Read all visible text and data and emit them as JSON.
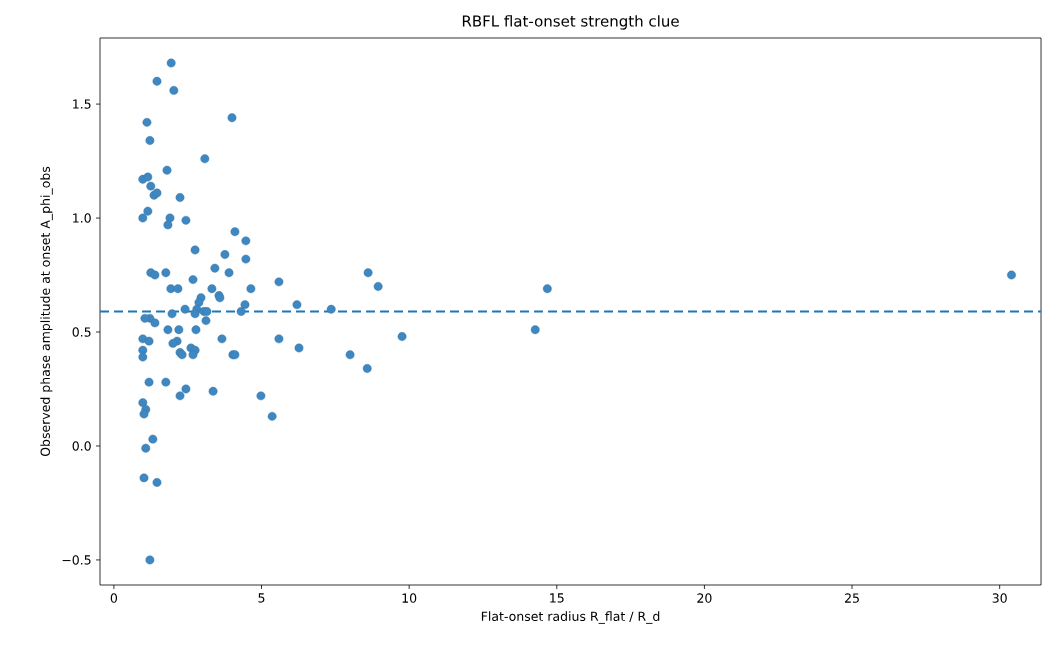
{
  "chart_data": {
    "type": "scatter",
    "title": "RBFL flat-onset strength clue",
    "xlabel": "Flat-onset radius R_flat / R_d",
    "ylabel": "Observed phase amplitude at onset A_phi_obs",
    "x": [
      1.94,
      1.46,
      2.03,
      1.12,
      4.0,
      1.22,
      3.08,
      1.8,
      0.98,
      1.15,
      1.25,
      1.36,
      1.46,
      2.24,
      1.15,
      0.98,
      1.9,
      1.83,
      2.44,
      4.1,
      4.47,
      2.75,
      3.76,
      4.47,
      3.42,
      3.9,
      1.76,
      1.25,
      1.39,
      8.61,
      30.4,
      2.68,
      5.59,
      8.95,
      1.93,
      2.17,
      3.32,
      4.64,
      14.68,
      3.56,
      3.59,
      2.95,
      2.88,
      6.2,
      4.44,
      7.36,
      2.81,
      2.41,
      4.31,
      2.75,
      3.05,
      3.15,
      1.97,
      1.22,
      1.05,
      1.39,
      3.12,
      14.27,
      2.2,
      1.83,
      2.78,
      9.76,
      5.59,
      0.98,
      3.66,
      1.19,
      2.14,
      2.0,
      6.27,
      2.61,
      0.98,
      2.75,
      2.24,
      2.31,
      2.68,
      4.03,
      4.1,
      8.0,
      0.98,
      8.58,
      1.19,
      1.76,
      2.44,
      3.36,
      2.24,
      4.98,
      0.98,
      1.08,
      1.02,
      5.36,
      1.32,
      1.08,
      1.02,
      1.46,
      1.22
    ],
    "values": [
      1.68,
      1.6,
      1.56,
      1.42,
      1.44,
      1.34,
      1.26,
      1.21,
      1.17,
      1.18,
      1.14,
      1.1,
      1.11,
      1.09,
      1.03,
      1.0,
      1.0,
      0.97,
      0.99,
      0.94,
      0.9,
      0.86,
      0.84,
      0.82,
      0.78,
      0.76,
      0.76,
      0.76,
      0.75,
      0.76,
      0.75,
      0.73,
      0.72,
      0.7,
      0.69,
      0.69,
      0.69,
      0.69,
      0.69,
      0.66,
      0.65,
      0.65,
      0.63,
      0.62,
      0.62,
      0.6,
      0.6,
      0.6,
      0.59,
      0.58,
      0.59,
      0.59,
      0.58,
      0.56,
      0.56,
      0.54,
      0.55,
      0.51,
      0.51,
      0.51,
      0.51,
      0.48,
      0.47,
      0.47,
      0.47,
      0.46,
      0.46,
      0.45,
      0.43,
      0.43,
      0.42,
      0.42,
      0.41,
      0.4,
      0.4,
      0.4,
      0.4,
      0.4,
      0.39,
      0.34,
      0.28,
      0.28,
      0.25,
      0.24,
      0.22,
      0.22,
      0.19,
      0.16,
      0.14,
      0.13,
      0.03,
      -0.01,
      -0.14,
      -0.16,
      -0.5
    ],
    "color": "#3f87c1",
    "marker": "circle",
    "xlim": [
      -0.47,
      31.4
    ],
    "ylim": [
      -0.61,
      1.79
    ],
    "xticks": [
      0,
      5,
      10,
      15,
      20,
      25,
      30
    ],
    "yticks": [
      {
        "value": -0.5,
        "label": "−0.5"
      },
      {
        "value": 0,
        "label": "0.0"
      },
      {
        "value": 0.5,
        "label": "0.5"
      },
      {
        "value": 1.0,
        "label": "1.0"
      },
      {
        "value": 1.5,
        "label": "1.5"
      }
    ],
    "ref_lines": [
      {
        "axis": "y",
        "value": 0.59,
        "label": null,
        "color": "#1f77b4",
        "line_style": "dashed"
      }
    ],
    "grid": false
  }
}
